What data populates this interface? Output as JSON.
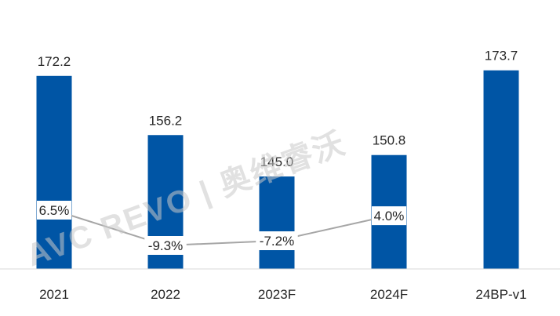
{
  "chart_data": {
    "type": "bar",
    "title": "",
    "xlabel": "",
    "ylabel": "",
    "categories": [
      "2021",
      "2022",
      "2023F",
      "2024F",
      "24BP-v1"
    ],
    "series": [
      {
        "values": [
          172.2,
          156.2,
          145.0,
          150.8,
          173.7
        ],
        "color": "#0055a5",
        "type": "bar"
      },
      {
        "values": [
          6.5,
          -9.3,
          -7.2,
          4.0,
          null
        ],
        "labels": [
          "6.5%",
          "-9.3%",
          "-7.2%",
          "4.0%",
          ""
        ],
        "color": "#a6a6a6",
        "type": "line"
      }
    ],
    "value_labels": [
      "172.2",
      "156.2",
      "145.0",
      "150.8",
      "173.7"
    ],
    "ylim": [
      120,
      180
    ],
    "grid": false,
    "legend": "none"
  },
  "watermark": {
    "text": "AVC REVO | 奥维睿沃",
    "color": "#c8c8c8"
  }
}
